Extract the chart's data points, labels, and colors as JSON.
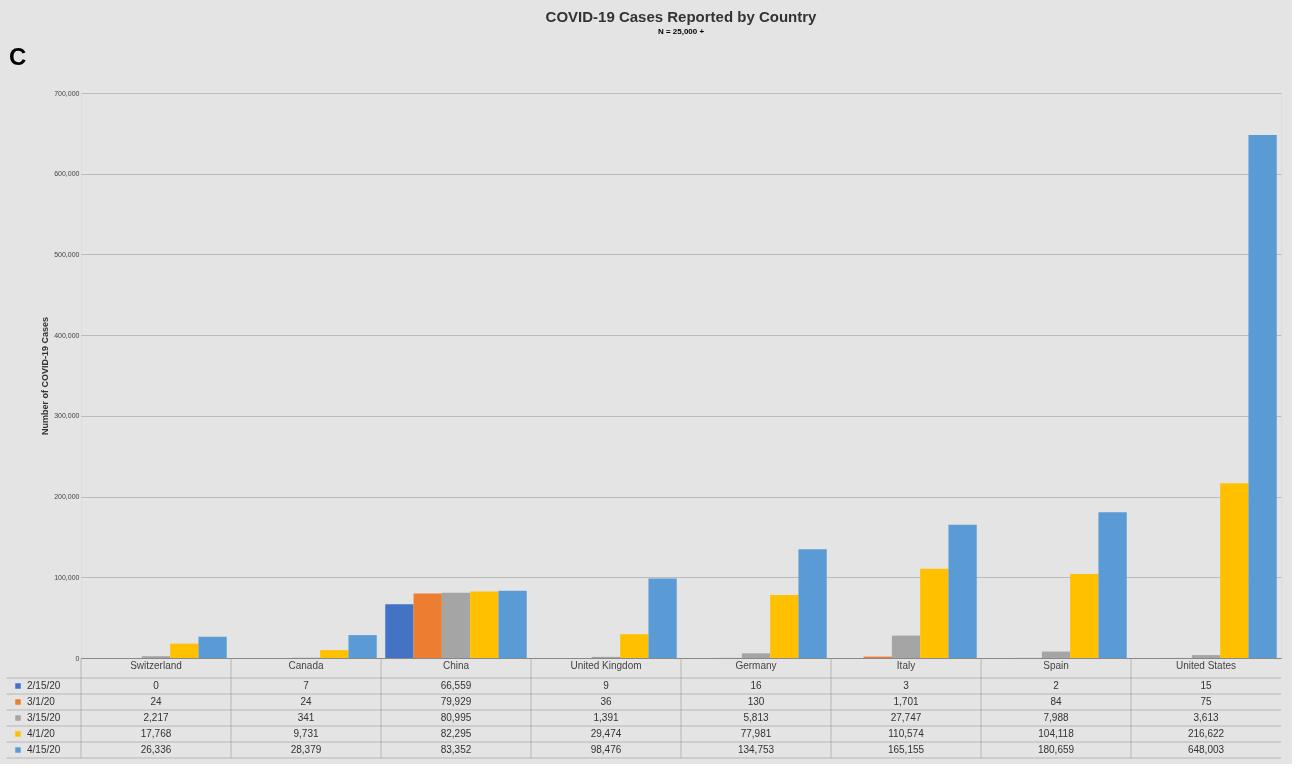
{
  "chart_data": {
    "type": "bar",
    "title": "COVID-19 Cases Reported by Country",
    "subtitle": "N = 25,000 +",
    "ylabel": "Number of COVID-19 Cases",
    "annotations": [
      "C"
    ],
    "categories": [
      "Switzerland",
      "Canada",
      "China",
      "United Kingdom",
      "Germany",
      "Italy",
      "Spain",
      "United States"
    ],
    "series": [
      {
        "name": "2/15/20",
        "color": "#4472c4",
        "values": [
          0,
          7,
          66559,
          9,
          16,
          3,
          2,
          15
        ],
        "value_labels": [
          "0",
          "7",
          "66,559",
          "9",
          "16",
          "3",
          "2",
          "15"
        ]
      },
      {
        "name": "3/1/20",
        "color": "#ed7d31",
        "values": [
          24,
          24,
          79929,
          36,
          130,
          1701,
          84,
          75
        ],
        "value_labels": [
          "24",
          "24",
          "79,929",
          "36",
          "130",
          "1,701",
          "84",
          "75"
        ]
      },
      {
        "name": "3/15/20",
        "color": "#a5a5a5",
        "values": [
          2217,
          341,
          80995,
          1391,
          5813,
          27747,
          7988,
          3613
        ],
        "value_labels": [
          "2,217",
          "341",
          "80,995",
          "1,391",
          "5,813",
          "27,747",
          "7,988",
          "3,613"
        ]
      },
      {
        "name": "4/1/20",
        "color": "#ffc000",
        "values": [
          17768,
          9731,
          82295,
          29474,
          77981,
          110574,
          104118,
          216622
        ],
        "value_labels": [
          "17,768",
          "9,731",
          "82,295",
          "29,474",
          "77,981",
          "110,574",
          "104,118",
          "216,622"
        ]
      },
      {
        "name": "4/15/20",
        "color": "#5b9bd5",
        "values": [
          26336,
          28379,
          83352,
          98476,
          134753,
          165155,
          180659,
          648003
        ],
        "value_labels": [
          "26,336",
          "28,379",
          "83,352",
          "98,476",
          "134,753",
          "165,155",
          "180,659",
          "648,003"
        ]
      }
    ],
    "ylim": [
      0,
      700000
    ],
    "yticks": [
      0,
      {
        "value": 100000,
        "label": "100,000"
      },
      {
        "value": 200000,
        "label": "200,000"
      },
      {
        "value": 300000,
        "label": "300,000"
      },
      {
        "value": 400000,
        "label": "400,000"
      },
      {
        "value": 500000,
        "label": "500,000"
      },
      {
        "value": 600000,
        "label": "600,000"
      },
      {
        "value": 700000,
        "label": "700,000"
      }
    ],
    "grid": "y",
    "legend": "bottom left"
  }
}
